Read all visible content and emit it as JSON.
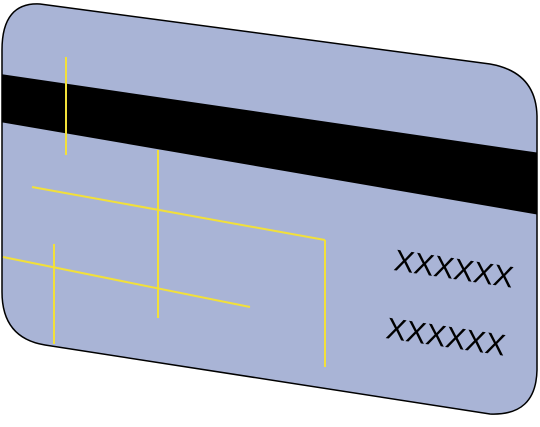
{
  "card": {
    "body_color": "#a9b4d6",
    "outline_color": "#000000",
    "stripe_color": "#000000",
    "circuit_color": "#f2e03a",
    "text_color": "#000000",
    "label_1": "XXXXXX",
    "label_2": "XXXXXX"
  }
}
